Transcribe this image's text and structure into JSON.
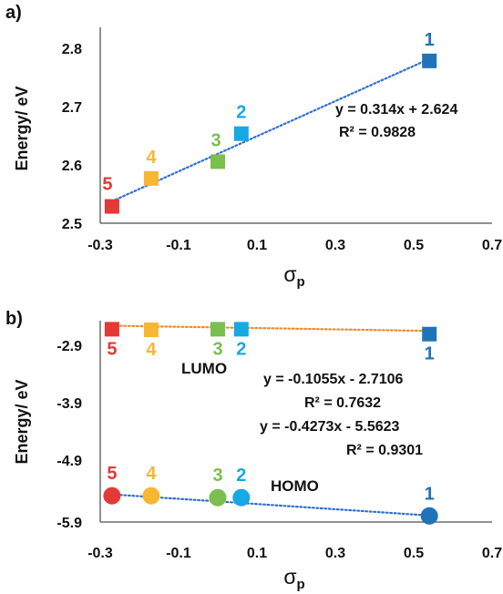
{
  "colors": {
    "1": "#1f74b7",
    "2": "#16a9e4",
    "3": "#7bbf4f",
    "4": "#f7b733",
    "5": "#e53935",
    "trend_a": "#2f6fd1",
    "trend_b_lumo": "#f08a24",
    "trend_b_homo": "#2f6fd1",
    "axis": "#6b6b6b",
    "text": "#111111"
  },
  "chart_data": [
    {
      "panel": "a)",
      "type": "scatter",
      "xlabel_main": "σ",
      "xlabel_sub": "p",
      "ylabel": "Energy/ eV",
      "xlim": [
        -0.3,
        0.7
      ],
      "ylim": [
        2.5,
        2.85
      ],
      "xticks": [
        -0.3,
        -0.1,
        0.1,
        0.3,
        0.5,
        0.7
      ],
      "yticks": [
        2.5,
        2.6,
        2.7,
        2.8
      ],
      "xtick_labels": [
        "-0.3",
        "-0.1",
        "0.1",
        "0.3",
        "0.5",
        "0.7"
      ],
      "ytick_labels": [
        "2.5",
        "2.6",
        "2.7",
        "2.8"
      ],
      "points": [
        {
          "id": "5",
          "x": -0.27,
          "y": 2.53
        },
        {
          "id": "4",
          "x": -0.17,
          "y": 2.58
        },
        {
          "id": "3",
          "x": 0.0,
          "y": 2.61
        },
        {
          "id": "2",
          "x": 0.06,
          "y": 2.66
        },
        {
          "id": "1",
          "x": 0.54,
          "y": 2.79
        }
      ],
      "trendline": {
        "slope": 0.314,
        "intercept": 2.624,
        "x_range": [
          -0.27,
          0.54
        ]
      },
      "equation": "y = 0.314x + 2.624",
      "r2": "R² = 0.9828"
    },
    {
      "panel": "b)",
      "type": "scatter",
      "xlabel_main": "σ",
      "xlabel_sub": "p",
      "ylabel": "Energy/ eV",
      "xlim": [
        -0.3,
        0.7
      ],
      "ylim": [
        -5.9,
        -2.6
      ],
      "xticks": [
        -0.3,
        -0.1,
        0.1,
        0.3,
        0.5,
        0.7
      ],
      "yticks": [
        -2.9,
        -3.9,
        -4.9,
        -5.9
      ],
      "xtick_labels": [
        "-0.3",
        "-0.1",
        "0.1",
        "0.3",
        "0.5",
        "0.7"
      ],
      "ytick_labels": [
        "-2.9",
        "-3.9",
        "-4.9",
        "-5.9"
      ],
      "lumo_points": [
        {
          "id": "5",
          "x": -0.27,
          "y": -2.74
        },
        {
          "id": "4",
          "x": -0.17,
          "y": -2.75
        },
        {
          "id": "3",
          "x": 0.0,
          "y": -2.74
        },
        {
          "id": "2",
          "x": 0.06,
          "y": -2.74
        },
        {
          "id": "1",
          "x": 0.54,
          "y": -2.82
        }
      ],
      "homo_points": [
        {
          "id": "5",
          "x": -0.27,
          "y": -5.47
        },
        {
          "id": "4",
          "x": -0.17,
          "y": -5.47
        },
        {
          "id": "3",
          "x": 0.0,
          "y": -5.5
        },
        {
          "id": "2",
          "x": 0.06,
          "y": -5.5
        },
        {
          "id": "1",
          "x": 0.54,
          "y": -5.8
        }
      ],
      "trendlines": {
        "lumo": {
          "slope": -0.1055,
          "intercept": -2.7106,
          "x_range": [
            -0.27,
            0.54
          ]
        },
        "homo": {
          "slope": -0.4273,
          "intercept": -5.5623,
          "x_range": [
            -0.27,
            0.54
          ]
        }
      },
      "lumo_label": "LUMO",
      "homo_label": "HOMO",
      "lumo_equation": "y = -0.1055x - 2.7106",
      "lumo_r2": "R² = 0.7632",
      "homo_equation": "y = -0.4273x - 5.5623",
      "homo_r2": "R² = 0.9301"
    }
  ]
}
